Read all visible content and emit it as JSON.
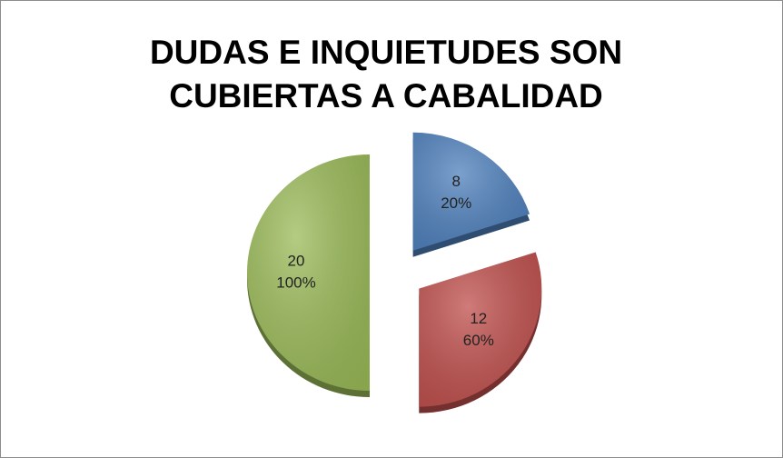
{
  "chart_data": {
    "type": "pie",
    "title": [
      "DUDAS E INQUIETUDES SON",
      "CUBIERTAS A CABALIDAD"
    ],
    "values": [
      8,
      12,
      20
    ],
    "percent_labels": [
      "20%",
      "60%",
      "100%"
    ],
    "colors": [
      "#4f81bd",
      "#c0504d",
      "#9bbb59"
    ],
    "exploded": true
  }
}
